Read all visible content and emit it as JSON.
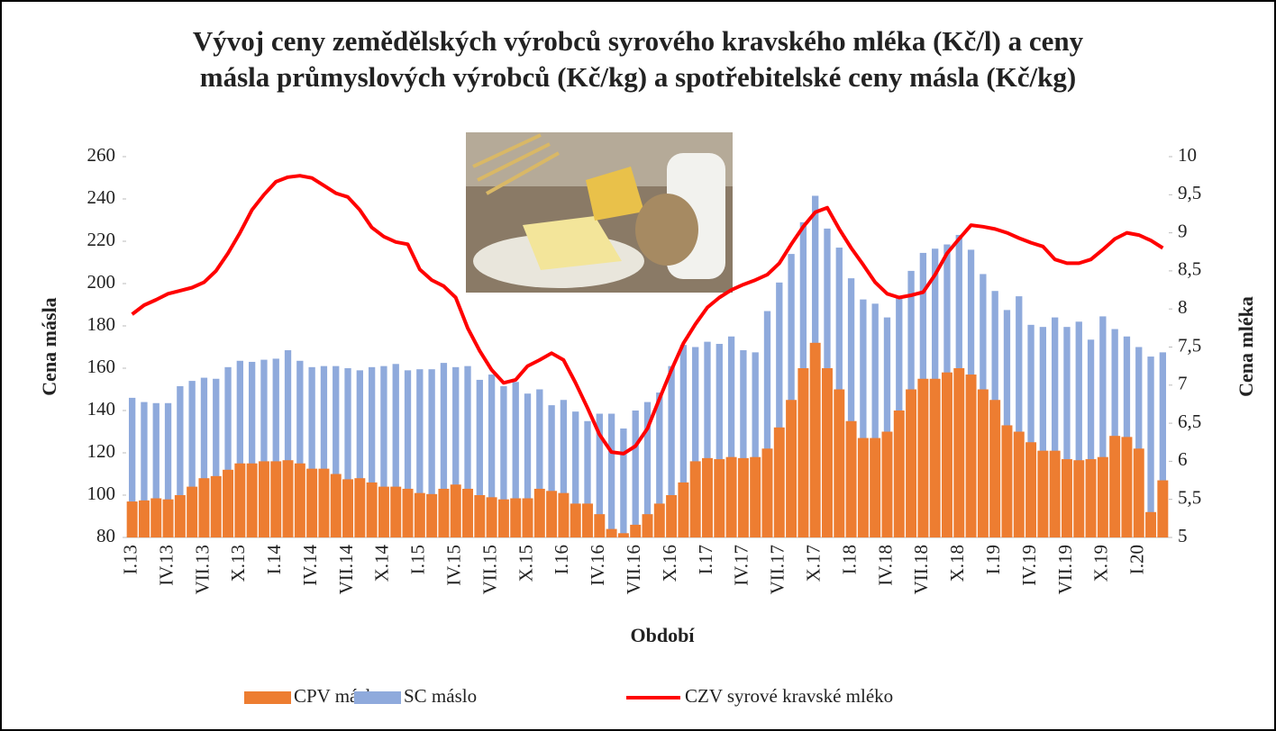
{
  "chart_data": {
    "type": "bar_line",
    "title": [
      "Vývoj ceny zemědělských výrobců syrového kravského mléka (Kč/l) a  ceny",
      "másla průmyslových výrobců (Kč/kg) a spotřebitelské ceny másla (Kč/kg)"
    ],
    "x_label": "Období",
    "y_label": "Cena másla",
    "y2_label": "Cena mléka",
    "categories": [
      "I.13",
      null,
      null,
      "IV.13",
      null,
      null,
      "VII.13",
      null,
      null,
      "X.13",
      null,
      null,
      "I.14",
      null,
      null,
      "IV.14",
      null,
      null,
      "VII.14",
      null,
      null,
      "X.14",
      null,
      null,
      "I.15",
      null,
      null,
      "IV.15",
      null,
      null,
      "VII.15",
      null,
      null,
      "X.15",
      null,
      null,
      "I.16",
      null,
      null,
      "IV.16",
      null,
      null,
      "VII.16",
      null,
      null,
      "X.16",
      null,
      null,
      "I.17",
      null,
      null,
      "IV.17",
      null,
      null,
      "VII.17",
      null,
      null,
      "X.17",
      null,
      null,
      "I.18",
      null,
      null,
      "IV.18",
      null,
      null,
      "VII.18",
      null,
      null,
      "X.18",
      null,
      null,
      "I.19",
      null,
      null,
      "IV.19",
      null,
      null,
      "VII.19",
      null,
      null,
      "X.19",
      null,
      null,
      "I.20",
      null,
      null
    ],
    "series": [
      {
        "name": "CPV máslo",
        "type": "bar",
        "color": "#ed7d31",
        "values": [
          97,
          97.5,
          98.5,
          98,
          100,
          104,
          108,
          109,
          112,
          115,
          115,
          116,
          116,
          116.5,
          115,
          112.5,
          112.5,
          110,
          107.5,
          108,
          106,
          104,
          104,
          103,
          101,
          100.5,
          103,
          105,
          103,
          100,
          99,
          98,
          98.5,
          98.5,
          103,
          102,
          101,
          96,
          96,
          91,
          84,
          82,
          86,
          91,
          96,
          100,
          106,
          116,
          117.5,
          117,
          118,
          117.5,
          118,
          122,
          132,
          145,
          160,
          172,
          160,
          150,
          135,
          127,
          127,
          130,
          140,
          150,
          155,
          155,
          158,
          160,
          157,
          150,
          145,
          133,
          130,
          125,
          121,
          121,
          117,
          116.5,
          117,
          118,
          128,
          127.5,
          122,
          92,
          107
        ]
      },
      {
        "name": "SC máslo",
        "type": "bar",
        "color": "#8faadc",
        "values": [
          146,
          144,
          143.5,
          143.5,
          151.5,
          154,
          155.5,
          155,
          160.5,
          163.5,
          163,
          164,
          164.5,
          168.5,
          163.5,
          160.5,
          161,
          161,
          160,
          159,
          160.5,
          161,
          162,
          159,
          159.5,
          159.5,
          162.5,
          160.5,
          161,
          154.5,
          157,
          151.5,
          153.5,
          148,
          150,
          142.5,
          145,
          139.5,
          135,
          138.5,
          138.5,
          131.5,
          140,
          144,
          148.5,
          161,
          171,
          170,
          172.5,
          171.5,
          175,
          168.5,
          167.5,
          187,
          200.5,
          214,
          229,
          241.5,
          226,
          217,
          202.5,
          192.5,
          190.5,
          184,
          193,
          206,
          214.5,
          216.5,
          218.5,
          223,
          216,
          204.5,
          196.5,
          187.5,
          194,
          180.5,
          179.5,
          184,
          179.5,
          182,
          173.5,
          184.5,
          178.5,
          175,
          170,
          165.5,
          167.5
        ]
      },
      {
        "name": "CZV syrové kravské mléko",
        "type": "line",
        "axis": "y2",
        "color": "#ff0000",
        "values": [
          7.93,
          8.05,
          8.12,
          8.2,
          8.24,
          8.28,
          8.35,
          8.5,
          8.73,
          9.0,
          9.3,
          9.5,
          9.67,
          9.73,
          9.75,
          9.72,
          9.62,
          9.52,
          9.47,
          9.3,
          9.07,
          8.95,
          8.88,
          8.85,
          8.52,
          8.38,
          8.3,
          8.15,
          7.75,
          7.45,
          7.2,
          7.03,
          7.07,
          7.25,
          7.33,
          7.42,
          7.33,
          7.03,
          6.7,
          6.35,
          6.12,
          6.1,
          6.2,
          6.43,
          6.82,
          7.2,
          7.55,
          7.8,
          8.02,
          8.15,
          8.25,
          8.32,
          8.38,
          8.45,
          8.6,
          8.85,
          9.08,
          9.27,
          9.33,
          9.05,
          8.8,
          8.58,
          8.35,
          8.2,
          8.15,
          8.18,
          8.22,
          8.45,
          8.73,
          8.92,
          9.1,
          9.08,
          9.05,
          9.0,
          8.93,
          8.87,
          8.82,
          8.65,
          8.6,
          8.6,
          8.65,
          8.78,
          8.92,
          9.0,
          8.97,
          8.9,
          8.8
        ]
      }
    ],
    "ylim": [
      80,
      260
    ],
    "yticks": [
      80,
      100,
      120,
      140,
      160,
      180,
      200,
      220,
      240,
      260
    ],
    "y2lim": [
      5,
      10
    ],
    "y2ticks": [
      5,
      {
        "value": 5.5,
        "label": "5,5"
      },
      6,
      {
        "value": 6.5,
        "label": "6,5"
      },
      7,
      {
        "value": 7.5,
        "label": "7,5"
      },
      8,
      {
        "value": 8.5,
        "label": "8,5"
      },
      9,
      {
        "value": 9.5,
        "label": "9,5"
      },
      10
    ],
    "legend": "bottom"
  }
}
